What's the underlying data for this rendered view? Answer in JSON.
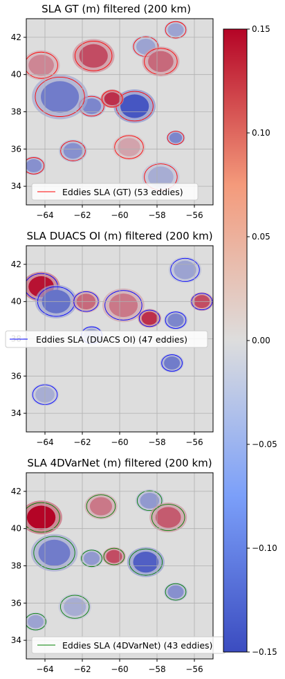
{
  "chart_data": [
    {
      "type": "heatmap",
      "title": "SLA GT (m) filtered (200 km)",
      "xlim": [
        -65,
        -55
      ],
      "ylim": [
        33,
        43
      ],
      "xticks": [
        -64,
        -62,
        -60,
        -58,
        -56
      ],
      "yticks": [
        34,
        36,
        38,
        40,
        42
      ],
      "grid": true,
      "legend": {
        "placement": "bottom",
        "label": "Eddies SLA (GT) (53 eddies)",
        "color": "#ff0000"
      },
      "eddy_count": 53,
      "features": [
        {
          "lon": -59.2,
          "lat": 38.3,
          "sla": -0.14,
          "r": 0.9
        },
        {
          "lon": -58.6,
          "lat": 41.5,
          "sla": -0.06,
          "r": 0.6
        },
        {
          "lon": -57.0,
          "lat": 42.4,
          "sla": -0.06,
          "r": 0.5
        },
        {
          "lon": -61.5,
          "lat": 38.3,
          "sla": -0.09,
          "r": 0.6
        },
        {
          "lon": -63.2,
          "lat": 38.8,
          "sla": -0.1,
          "r": 1.2
        },
        {
          "lon": -60.4,
          "lat": 38.7,
          "sla": 0.12,
          "r": 0.5
        },
        {
          "lon": -61.4,
          "lat": 41.0,
          "sla": 0.1,
          "r": 0.9
        },
        {
          "lon": -57.8,
          "lat": 40.7,
          "sla": 0.08,
          "r": 0.8
        },
        {
          "lon": -62.5,
          "lat": 35.9,
          "sla": -0.08,
          "r": 0.6
        },
        {
          "lon": -64.6,
          "lat": 35.1,
          "sla": -0.08,
          "r": 0.5
        },
        {
          "lon": -57.0,
          "lat": 36.6,
          "sla": -0.09,
          "r": 0.4
        },
        {
          "lon": -57.8,
          "lat": 34.5,
          "sla": -0.05,
          "r": 0.8
        },
        {
          "lon": -59.5,
          "lat": 36.1,
          "sla": 0.04,
          "r": 0.7
        },
        {
          "lon": -64.2,
          "lat": 40.5,
          "sla": 0.06,
          "r": 0.8
        }
      ]
    },
    {
      "type": "heatmap",
      "title": "SLA DUACS OI (m) filtered (200 km)",
      "xlim": [
        -65,
        -55
      ],
      "ylim": [
        33,
        43
      ],
      "xticks": [
        -64,
        -62,
        -60,
        -58,
        -56
      ],
      "yticks": [
        34,
        36,
        38,
        40,
        42
      ],
      "grid": true,
      "legend": {
        "placement": "center-left",
        "label": "Eddies SLA (DUACS OI) (47 eddies)",
        "color": "#0000ff"
      },
      "eddy_count": 47,
      "features": [
        {
          "lon": -64.2,
          "lat": 40.8,
          "sla": 0.14,
          "r": 0.8
        },
        {
          "lon": -63.4,
          "lat": 40.0,
          "sla": -0.11,
          "r": 0.9
        },
        {
          "lon": -61.8,
          "lat": 40.0,
          "sla": 0.08,
          "r": 0.6
        },
        {
          "lon": -59.8,
          "lat": 39.8,
          "sla": 0.07,
          "r": 0.9
        },
        {
          "lon": -57.0,
          "lat": 39.0,
          "sla": -0.09,
          "r": 0.5
        },
        {
          "lon": -57.2,
          "lat": 36.7,
          "sla": -0.1,
          "r": 0.5
        },
        {
          "lon": -58.4,
          "lat": 39.1,
          "sla": 0.12,
          "r": 0.5
        },
        {
          "lon": -56.5,
          "lat": 41.7,
          "sla": -0.06,
          "r": 0.7
        },
        {
          "lon": -55.6,
          "lat": 40.0,
          "sla": 0.1,
          "r": 0.5
        },
        {
          "lon": -64.0,
          "lat": 35.0,
          "sla": -0.05,
          "r": 0.6
        },
        {
          "lon": -61.5,
          "lat": 38.2,
          "sla": -0.06,
          "r": 0.5
        }
      ]
    },
    {
      "type": "heatmap",
      "title": "SLA 4DVarNet (m) filtered (200 km)",
      "xlim": [
        -65,
        -55
      ],
      "ylim": [
        33,
        43
      ],
      "xticks": [
        -64,
        -62,
        -60,
        -58,
        -56
      ],
      "yticks": [
        34,
        36,
        38,
        40,
        42
      ],
      "grid": true,
      "legend": {
        "placement": "bottom",
        "label": "Eddies SLA (4DVarNet) (43 eddies)",
        "color": "#008000"
      },
      "eddy_count": 43,
      "features": [
        {
          "lon": -64.2,
          "lat": 40.6,
          "sla": 0.15,
          "r": 0.9
        },
        {
          "lon": -63.5,
          "lat": 38.7,
          "sla": -0.1,
          "r": 1.0
        },
        {
          "lon": -58.6,
          "lat": 38.2,
          "sla": -0.13,
          "r": 0.8
        },
        {
          "lon": -58.4,
          "lat": 41.5,
          "sla": -0.07,
          "r": 0.6
        },
        {
          "lon": -57.4,
          "lat": 40.6,
          "sla": 0.09,
          "r": 0.8
        },
        {
          "lon": -61.5,
          "lat": 38.4,
          "sla": -0.07,
          "r": 0.5
        },
        {
          "lon": -60.3,
          "lat": 38.5,
          "sla": 0.1,
          "r": 0.5
        },
        {
          "lon": -57.0,
          "lat": 36.6,
          "sla": -0.08,
          "r": 0.5
        },
        {
          "lon": -64.5,
          "lat": 35.0,
          "sla": -0.06,
          "r": 0.5
        },
        {
          "lon": -62.4,
          "lat": 35.8,
          "sla": -0.05,
          "r": 0.7
        },
        {
          "lon": -61.0,
          "lat": 41.2,
          "sla": 0.07,
          "r": 0.7
        }
      ]
    }
  ],
  "colorbar": {
    "cmap": "coolwarm",
    "range": [
      -0.15,
      0.15
    ],
    "ticks": [
      "0.15",
      "0.10",
      "0.05",
      "0.00",
      "−0.05",
      "−0.10",
      "−0.15"
    ],
    "tick_values": [
      0.15,
      0.1,
      0.05,
      0.0,
      -0.05,
      -0.1,
      -0.15
    ],
    "colors": {
      "low": "#3b4cc0",
      "mid": "#dddddd",
      "high": "#b40426"
    }
  },
  "tick_labels": {
    "x": [
      "−64",
      "−62",
      "−60",
      "−58",
      "−56"
    ],
    "y": [
      "34",
      "36",
      "38",
      "40",
      "42"
    ]
  }
}
